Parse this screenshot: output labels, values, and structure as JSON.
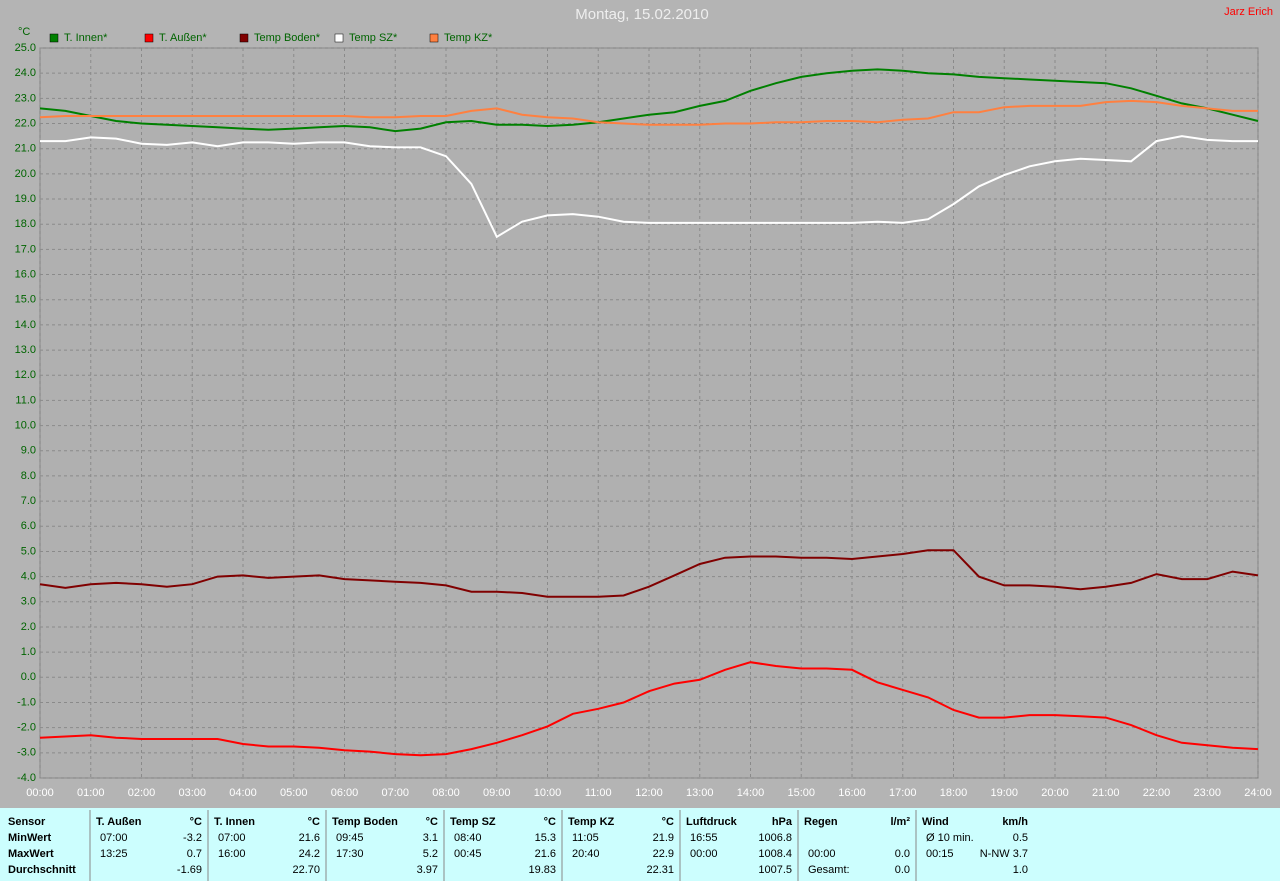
{
  "chart_data": {
    "type": "line",
    "title": "Montag, 15.02.2010",
    "author": "Jarz Erich",
    "y_label": "°C",
    "grid": true,
    "x": [
      0,
      0.5,
      1,
      1.5,
      2,
      2.5,
      3,
      3.5,
      4,
      4.5,
      5,
      5.5,
      6,
      6.5,
      7,
      7.5,
      8,
      8.5,
      9,
      9.5,
      10,
      10.5,
      11,
      11.5,
      12,
      12.5,
      13,
      13.5,
      14,
      14.5,
      15,
      15.5,
      16,
      16.5,
      17,
      17.5,
      18,
      18.5,
      19,
      19.5,
      20,
      20.5,
      21,
      21.5,
      22,
      22.5,
      23,
      23.5,
      24
    ],
    "xlim": [
      0,
      24
    ],
    "xticks": [
      {
        "value": 0,
        "label": "00:00"
      },
      {
        "value": 1,
        "label": "01:00"
      },
      {
        "value": 2,
        "label": "02:00"
      },
      {
        "value": 3,
        "label": "03:00"
      },
      {
        "value": 4,
        "label": "04:00"
      },
      {
        "value": 5,
        "label": "05:00"
      },
      {
        "value": 6,
        "label": "06:00"
      },
      {
        "value": 7,
        "label": "07:00"
      },
      {
        "value": 8,
        "label": "08:00"
      },
      {
        "value": 9,
        "label": "09:00"
      },
      {
        "value": 10,
        "label": "10:00"
      },
      {
        "value": 11,
        "label": "11:00"
      },
      {
        "value": 12,
        "label": "12:00"
      },
      {
        "value": 13,
        "label": "13:00"
      },
      {
        "value": 14,
        "label": "14:00"
      },
      {
        "value": 15,
        "label": "15:00"
      },
      {
        "value": 16,
        "label": "16:00"
      },
      {
        "value": 17,
        "label": "17:00"
      },
      {
        "value": 18,
        "label": "18:00"
      },
      {
        "value": 19,
        "label": "19:00"
      },
      {
        "value": 20,
        "label": "20:00"
      },
      {
        "value": 21,
        "label": "21:00"
      },
      {
        "value": 22,
        "label": "22:00"
      },
      {
        "value": 23,
        "label": "23:00"
      },
      {
        "value": 24,
        "label": "24:00"
      }
    ],
    "ylim": [
      -4,
      25
    ],
    "yticks": [
      {
        "value": -4,
        "label": "-4.0"
      },
      {
        "value": -3,
        "label": "-3.0"
      },
      {
        "value": -2,
        "label": "-2.0"
      },
      {
        "value": -1,
        "label": "-1.0"
      },
      {
        "value": 0,
        "label": "0.0"
      },
      {
        "value": 1,
        "label": "1.0"
      },
      {
        "value": 2,
        "label": "2.0"
      },
      {
        "value": 3,
        "label": "3.0"
      },
      {
        "value": 4,
        "label": "4.0"
      },
      {
        "value": 5,
        "label": "5.0"
      },
      {
        "value": 6,
        "label": "6.0"
      },
      {
        "value": 7,
        "label": "7.0"
      },
      {
        "value": 8,
        "label": "8.0"
      },
      {
        "value": 9,
        "label": "9.0"
      },
      {
        "value": 10,
        "label": "10.0"
      },
      {
        "value": 11,
        "label": "11.0"
      },
      {
        "value": 12,
        "label": "12.0"
      },
      {
        "value": 13,
        "label": "13.0"
      },
      {
        "value": 14,
        "label": "14.0"
      },
      {
        "value": 15,
        "label": "15.0"
      },
      {
        "value": 16,
        "label": "16.0"
      },
      {
        "value": 17,
        "label": "17.0"
      },
      {
        "value": 18,
        "label": "18.0"
      },
      {
        "value": 19,
        "label": "19.0"
      },
      {
        "value": 20,
        "label": "20.0"
      },
      {
        "value": 21,
        "label": "21.0"
      },
      {
        "value": 22,
        "label": "22.0"
      },
      {
        "value": 23,
        "label": "23.0"
      },
      {
        "value": 24,
        "label": "24.0"
      },
      {
        "value": 25,
        "label": "25.0"
      }
    ],
    "series": [
      {
        "name": "T. Innen*",
        "color": "#008000",
        "values": [
          22.6,
          22.5,
          22.3,
          22.1,
          22.0,
          21.95,
          21.9,
          21.85,
          21.8,
          21.75,
          21.8,
          21.85,
          21.9,
          21.85,
          21.7,
          21.8,
          22.05,
          22.1,
          21.95,
          21.95,
          21.9,
          21.95,
          22.05,
          22.2,
          22.35,
          22.45,
          22.7,
          22.9,
          23.3,
          23.6,
          23.85,
          24.0,
          24.1,
          24.15,
          24.1,
          24.0,
          23.95,
          23.85,
          23.8,
          23.75,
          23.7,
          23.65,
          23.6,
          23.4,
          23.1,
          22.8,
          22.6,
          22.35,
          22.1
        ]
      },
      {
        "name": "T. Außen*",
        "color": "#ff0000",
        "values": [
          -2.4,
          -2.35,
          -2.3,
          -2.4,
          -2.45,
          -2.45,
          -2.45,
          -2.45,
          -2.65,
          -2.75,
          -2.75,
          -2.8,
          -2.9,
          -2.95,
          -3.05,
          -3.1,
          -3.05,
          -2.85,
          -2.6,
          -2.3,
          -1.95,
          -1.45,
          -1.25,
          -1.0,
          -0.55,
          -0.25,
          -0.1,
          0.3,
          0.6,
          0.45,
          0.35,
          0.35,
          0.3,
          -0.2,
          -0.5,
          -0.8,
          -1.3,
          -1.6,
          -1.6,
          -1.5,
          -1.5,
          -1.55,
          -1.6,
          -1.9,
          -2.3,
          -2.6,
          -2.7,
          -2.8,
          -2.85
        ]
      },
      {
        "name": "Temp Boden*",
        "color": "#800000",
        "values": [
          3.7,
          3.55,
          3.7,
          3.75,
          3.7,
          3.6,
          3.7,
          4.0,
          4.05,
          3.95,
          4.0,
          4.05,
          3.9,
          3.85,
          3.8,
          3.75,
          3.65,
          3.4,
          3.4,
          3.35,
          3.2,
          3.2,
          3.2,
          3.25,
          3.6,
          4.05,
          4.5,
          4.75,
          4.8,
          4.8,
          4.75,
          4.75,
          4.7,
          4.8,
          4.9,
          5.05,
          5.05,
          4.0,
          3.65,
          3.65,
          3.6,
          3.5,
          3.6,
          3.75,
          4.1,
          3.9,
          3.9,
          4.2,
          4.05
        ]
      },
      {
        "name": "Temp SZ*",
        "color": "#ffffff",
        "values": [
          21.3,
          21.3,
          21.45,
          21.4,
          21.2,
          21.15,
          21.25,
          21.1,
          21.25,
          21.25,
          21.2,
          21.25,
          21.25,
          21.1,
          21.05,
          21.05,
          20.7,
          19.6,
          17.5,
          18.1,
          18.35,
          18.4,
          18.3,
          18.1,
          18.05,
          18.05,
          18.05,
          18.05,
          18.05,
          18.05,
          18.05,
          18.05,
          18.05,
          18.1,
          18.05,
          18.2,
          18.8,
          19.5,
          19.95,
          20.3,
          20.5,
          20.6,
          20.55,
          20.5,
          21.3,
          21.5,
          21.35,
          21.3,
          21.3
        ]
      },
      {
        "name": "Temp KZ*",
        "color": "#ff8040",
        "values": [
          22.25,
          22.3,
          22.3,
          22.3,
          22.3,
          22.3,
          22.3,
          22.3,
          22.3,
          22.3,
          22.3,
          22.3,
          22.3,
          22.25,
          22.25,
          22.3,
          22.3,
          22.5,
          22.6,
          22.35,
          22.25,
          22.2,
          22.05,
          22.0,
          21.95,
          21.95,
          21.95,
          22.0,
          22.0,
          22.05,
          22.05,
          22.1,
          22.1,
          22.05,
          22.15,
          22.2,
          22.45,
          22.45,
          22.65,
          22.7,
          22.7,
          22.7,
          22.85,
          22.9,
          22.85,
          22.7,
          22.6,
          22.5,
          22.5
        ]
      }
    ]
  },
  "table": {
    "row_labels": [
      "Sensor",
      "MinWert",
      "MaxWert",
      "Durchschnitt"
    ],
    "columns": [
      {
        "title": "T. Außen",
        "unit": "°C",
        "min": [
          "07:00",
          "-3.2"
        ],
        "max": [
          "13:25",
          "0.7"
        ],
        "avg": [
          "-1.69"
        ]
      },
      {
        "title": "T. Innen",
        "unit": "°C",
        "min": [
          "07:00",
          "21.6"
        ],
        "max": [
          "16:00",
          "24.2"
        ],
        "avg": [
          "22.70"
        ]
      },
      {
        "title": "Temp Boden",
        "unit": "°C",
        "min": [
          "09:45",
          "3.1"
        ],
        "max": [
          "17:30",
          "5.2"
        ],
        "avg": [
          "3.97"
        ]
      },
      {
        "title": "Temp SZ",
        "unit": "°C",
        "min": [
          "08:40",
          "15.3"
        ],
        "max": [
          "00:45",
          "21.6"
        ],
        "avg": [
          "19.83"
        ]
      },
      {
        "title": "Temp KZ",
        "unit": "°C",
        "min": [
          "11:05",
          "21.9"
        ],
        "max": [
          "20:40",
          "22.9"
        ],
        "avg": [
          "22.31"
        ]
      },
      {
        "title": "Luftdruck",
        "unit": "hPa",
        "min": [
          "16:55",
          "1006.8"
        ],
        "max": [
          "00:00",
          "1008.4"
        ],
        "avg": [
          "1007.5"
        ]
      },
      {
        "title": "Regen",
        "unit": "l/m²",
        "max": [
          "00:00",
          "0.0"
        ],
        "avg": [
          "Gesamt:",
          "0.0"
        ]
      },
      {
        "title": "Wind",
        "unit": "km/h",
        "min": [
          "Ø 10 min.",
          "0.5"
        ],
        "max": [
          "00:15",
          "N-NW 3.7"
        ],
        "avg": [
          "1.0"
        ]
      }
    ]
  }
}
